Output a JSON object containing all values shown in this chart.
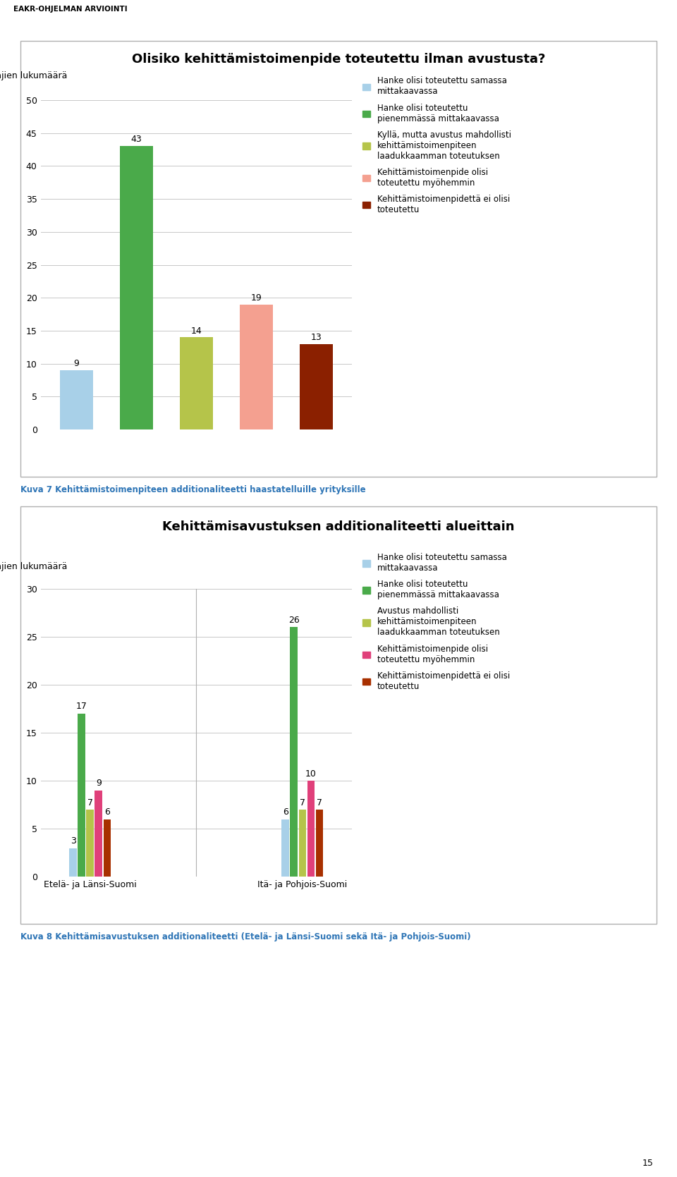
{
  "chart1": {
    "title": "Olisiko kehittämistoimenpide toteutettu ilman avustusta?",
    "ylabel": "Vastaajien lukumäärä",
    "ylim": [
      0,
      50
    ],
    "yticks": [
      0,
      5,
      10,
      15,
      20,
      25,
      30,
      35,
      40,
      45,
      50
    ],
    "values": [
      9,
      43,
      14,
      19,
      13
    ],
    "colors": [
      "#a8d0e8",
      "#4aaa4a",
      "#b5c44a",
      "#f4a090",
      "#8b2000"
    ],
    "bar_width": 0.55
  },
  "chart2": {
    "title": "Kehittämisavustuksen additionaliteetti alueittain",
    "ylabel": "Vastaajien lukumäärä",
    "ylim": [
      0,
      30
    ],
    "yticks": [
      0,
      5,
      10,
      15,
      20,
      25,
      30
    ],
    "group_labels": [
      "Etelä- ja Länsi-Suomi",
      "Itä- ja Pohjois-Suomi"
    ],
    "series": [
      [
        3,
        6
      ],
      [
        17,
        26
      ],
      [
        7,
        7
      ],
      [
        9,
        10
      ],
      [
        6,
        7
      ]
    ],
    "colors": [
      "#a8d0e8",
      "#4aaa4a",
      "#b5c44a",
      "#e0407a",
      "#a83000"
    ],
    "bar_width": 0.12
  },
  "legend_labels1": [
    "Hanke olisi toteutettu samassa\nmittakaavassa",
    "Hanke olisi toteutettu\npienemmässä mittakaavassa",
    "Kyllä, mutta avustus mahdollisti\nkehittämistoimenpiteen\nlaadukkaamman toteutuksen",
    "Kehittämistoimenpide olisi\ntoteutettu myöhemmin",
    "Kehittämistoimenpidettä ei olisi\ntoteutettu"
  ],
  "legend_labels2": [
    "Hanke olisi toteutettu samassa\nmittakaavassa",
    "Hanke olisi toteutettu\npienemmässä mittakaavassa",
    "Avustus mahdollisti\nkehittämistoimenpiteen\nlaadukkaamman toteutuksen",
    "Kehittämistoimenpide olisi\ntoteutettu myöhemmin",
    "Kehittämistoimenpidettä ei olisi\ntoteutettu"
  ],
  "header_text": "EAKR-OHJELMAN ARVIOINTI",
  "caption1": "Kuva 7 Kehittämistoimenpiteen additionaliteetti haastatelluille yrityksille",
  "caption2": "Kuva 8 Kehittämisavustuksen additionaliteetti (Etelä- ja Länsi-Suomi sekä Itä- ja Pohjois-Suomi)",
  "page_number": "15",
  "box_edge_color": "#b0b0b0",
  "grid_color": "#c8c8c8",
  "title_fontsize": 13,
  "bar_label_fontsize": 9,
  "tick_fontsize": 9,
  "legend_fontsize": 8.5,
  "ylabel_fontsize": 9,
  "caption1_color": "#2e75b6",
  "caption2_color": "#2e75b6"
}
